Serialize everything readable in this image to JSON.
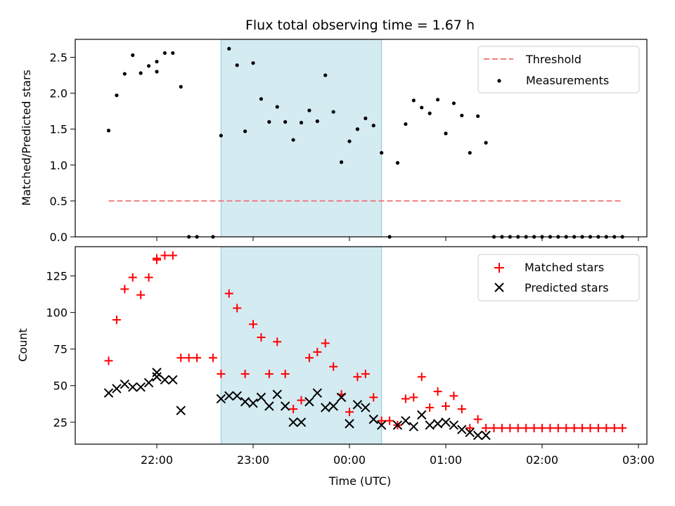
{
  "chart_data": [
    {
      "type": "scatter",
      "title": "Flux total observing time = 1.67 h",
      "ylabel": "Matched/Predicted stars",
      "xlabel": "",
      "ylim": [
        0,
        2.75
      ],
      "yticks": [
        "0.0",
        "0.5",
        "1.0",
        "1.5",
        "2.0",
        "2.5"
      ],
      "highlight_span": [
        "22:40",
        "00:20"
      ],
      "legend_position": "top-right",
      "threshold": {
        "name": "Threshold",
        "value": 0.5,
        "x_range": [
          "21:30",
          "02:50"
        ],
        "color": "#f08080"
      },
      "series": [
        {
          "name": "Measurements",
          "color": "#000000",
          "points": [
            [
              "21:30",
              1.48
            ],
            [
              "21:35",
              1.97
            ],
            [
              "21:40",
              2.27
            ],
            [
              "21:45",
              2.53
            ],
            [
              "21:50",
              2.28
            ],
            [
              "21:55",
              2.38
            ],
            [
              "22:00",
              2.3
            ],
            [
              "22:00",
              2.44
            ],
            [
              "22:05",
              2.56
            ],
            [
              "22:10",
              2.56
            ],
            [
              "22:15",
              2.09
            ],
            [
              "22:20",
              0.0
            ],
            [
              "22:25",
              0.0
            ],
            [
              "22:35",
              0.0
            ],
            [
              "22:40",
              1.41
            ],
            [
              "22:45",
              2.62
            ],
            [
              "22:50",
              2.39
            ],
            [
              "22:55",
              1.47
            ],
            [
              "23:00",
              2.42
            ],
            [
              "23:05",
              1.92
            ],
            [
              "23:10",
              1.6
            ],
            [
              "23:15",
              1.81
            ],
            [
              "23:20",
              1.6
            ],
            [
              "23:25",
              1.35
            ],
            [
              "23:30",
              1.59
            ],
            [
              "23:35",
              1.76
            ],
            [
              "23:40",
              1.61
            ],
            [
              "23:45",
              2.25
            ],
            [
              "23:50",
              1.74
            ],
            [
              "23:55",
              1.04
            ],
            [
              "00:00",
              1.33
            ],
            [
              "00:05",
              1.5
            ],
            [
              "00:10",
              1.65
            ],
            [
              "00:15",
              1.55
            ],
            [
              "00:20",
              1.17
            ],
            [
              "00:25",
              0.0
            ],
            [
              "00:30",
              1.03
            ],
            [
              "00:35",
              1.57
            ],
            [
              "00:40",
              1.9
            ],
            [
              "00:45",
              1.8
            ],
            [
              "00:50",
              1.72
            ],
            [
              "00:55",
              1.91
            ],
            [
              "01:00",
              1.44
            ],
            [
              "01:05",
              1.86
            ],
            [
              "01:10",
              1.69
            ],
            [
              "01:15",
              1.17
            ],
            [
              "01:20",
              1.68
            ],
            [
              "01:25",
              1.31
            ],
            [
              "01:30",
              0.0
            ],
            [
              "01:35",
              0.0
            ],
            [
              "01:40",
              0.0
            ],
            [
              "01:45",
              0.0
            ],
            [
              "01:50",
              0.0
            ],
            [
              "01:55",
              0.0
            ],
            [
              "02:00",
              0.0
            ],
            [
              "02:05",
              0.0
            ],
            [
              "02:10",
              0.0
            ],
            [
              "02:15",
              0.0
            ],
            [
              "02:20",
              0.0
            ],
            [
              "02:25",
              0.0
            ],
            [
              "02:30",
              0.0
            ],
            [
              "02:35",
              0.0
            ],
            [
              "02:40",
              0.0
            ],
            [
              "02:45",
              0.0
            ],
            [
              "02:50",
              0.0
            ]
          ]
        }
      ]
    },
    {
      "type": "scatter",
      "title": "",
      "ylabel": "Count",
      "xlabel": "Time (UTC)",
      "ylim": [
        10,
        145
      ],
      "yticks": [
        "25",
        "50",
        "75",
        "100",
        "125"
      ],
      "xticks": [
        "22:00",
        "23:00",
        "00:00",
        "01:00",
        "02:00",
        "03:00"
      ],
      "highlight_span": [
        "22:40",
        "00:20"
      ],
      "legend_position": "top-right",
      "series": [
        {
          "name": "Matched stars",
          "color": "#ff0000",
          "marker": "plus",
          "points": [
            [
              "21:30",
              67
            ],
            [
              "21:35",
              95
            ],
            [
              "21:40",
              116
            ],
            [
              "21:45",
              124
            ],
            [
              "21:50",
              112
            ],
            [
              "21:55",
              124
            ],
            [
              "22:00",
              136
            ],
            [
              "22:00",
              137
            ],
            [
              "22:05",
              139
            ],
            [
              "22:10",
              139
            ],
            [
              "22:15",
              69
            ],
            [
              "22:20",
              69
            ],
            [
              "22:25",
              69
            ],
            [
              "22:35",
              69
            ],
            [
              "22:40",
              58
            ],
            [
              "22:45",
              113
            ],
            [
              "22:50",
              103
            ],
            [
              "22:55",
              58
            ],
            [
              "23:00",
              92
            ],
            [
              "23:05",
              83
            ],
            [
              "23:10",
              58
            ],
            [
              "23:15",
              80
            ],
            [
              "23:20",
              58
            ],
            [
              "23:25",
              34
            ],
            [
              "23:30",
              40
            ],
            [
              "23:35",
              69
            ],
            [
              "23:40",
              73
            ],
            [
              "23:45",
              79
            ],
            [
              "23:50",
              63
            ],
            [
              "23:55",
              44
            ],
            [
              "00:00",
              32
            ],
            [
              "00:05",
              56
            ],
            [
              "00:10",
              58
            ],
            [
              "00:15",
              42
            ],
            [
              "00:20",
              26
            ],
            [
              "00:25",
              26
            ],
            [
              "00:30",
              23
            ],
            [
              "00:35",
              41
            ],
            [
              "00:40",
              42
            ],
            [
              "00:45",
              56
            ],
            [
              "00:50",
              35
            ],
            [
              "00:55",
              46
            ],
            [
              "01:00",
              36
            ],
            [
              "01:05",
              43
            ],
            [
              "01:10",
              34
            ],
            [
              "01:15",
              21
            ],
            [
              "01:20",
              27
            ],
            [
              "01:25",
              21
            ],
            [
              "01:30",
              21
            ],
            [
              "01:35",
              21
            ],
            [
              "01:40",
              21
            ],
            [
              "01:45",
              21
            ],
            [
              "01:50",
              21
            ],
            [
              "01:55",
              21
            ],
            [
              "02:00",
              21
            ],
            [
              "02:05",
              21
            ],
            [
              "02:10",
              21
            ],
            [
              "02:15",
              21
            ],
            [
              "02:20",
              21
            ],
            [
              "02:25",
              21
            ],
            [
              "02:30",
              21
            ],
            [
              "02:35",
              21
            ],
            [
              "02:40",
              21
            ],
            [
              "02:45",
              21
            ],
            [
              "02:50",
              21
            ]
          ]
        },
        {
          "name": "Predicted stars",
          "color": "#000000",
          "marker": "x",
          "points": [
            [
              "21:30",
              45
            ],
            [
              "21:35",
              48
            ],
            [
              "21:40",
              51
            ],
            [
              "21:45",
              49
            ],
            [
              "21:50",
              49
            ],
            [
              "21:55",
              52
            ],
            [
              "22:00",
              59
            ],
            [
              "22:00",
              56
            ],
            [
              "22:05",
              54
            ],
            [
              "22:10",
              54
            ],
            [
              "22:15",
              33
            ],
            [
              "22:40",
              41
            ],
            [
              "22:45",
              43
            ],
            [
              "22:50",
              43
            ],
            [
              "22:55",
              39
            ],
            [
              "23:00",
              38
            ],
            [
              "23:05",
              42
            ],
            [
              "23:10",
              36
            ],
            [
              "23:15",
              44
            ],
            [
              "23:20",
              36
            ],
            [
              "23:25",
              25
            ],
            [
              "23:30",
              25
            ],
            [
              "23:35",
              39
            ],
            [
              "23:40",
              45
            ],
            [
              "23:45",
              35
            ],
            [
              "23:50",
              36
            ],
            [
              "23:55",
              42
            ],
            [
              "00:00",
              24
            ],
            [
              "00:05",
              37
            ],
            [
              "00:10",
              35
            ],
            [
              "00:15",
              27
            ],
            [
              "00:20",
              23
            ],
            [
              "00:30",
              23
            ],
            [
              "00:35",
              26
            ],
            [
              "00:40",
              22
            ],
            [
              "00:45",
              30
            ],
            [
              "00:50",
              23
            ],
            [
              "00:55",
              24
            ],
            [
              "01:00",
              25
            ],
            [
              "01:05",
              23
            ],
            [
              "01:10",
              20
            ],
            [
              "01:15",
              18
            ],
            [
              "01:20",
              16
            ],
            [
              "01:25",
              16
            ]
          ]
        }
      ]
    }
  ]
}
